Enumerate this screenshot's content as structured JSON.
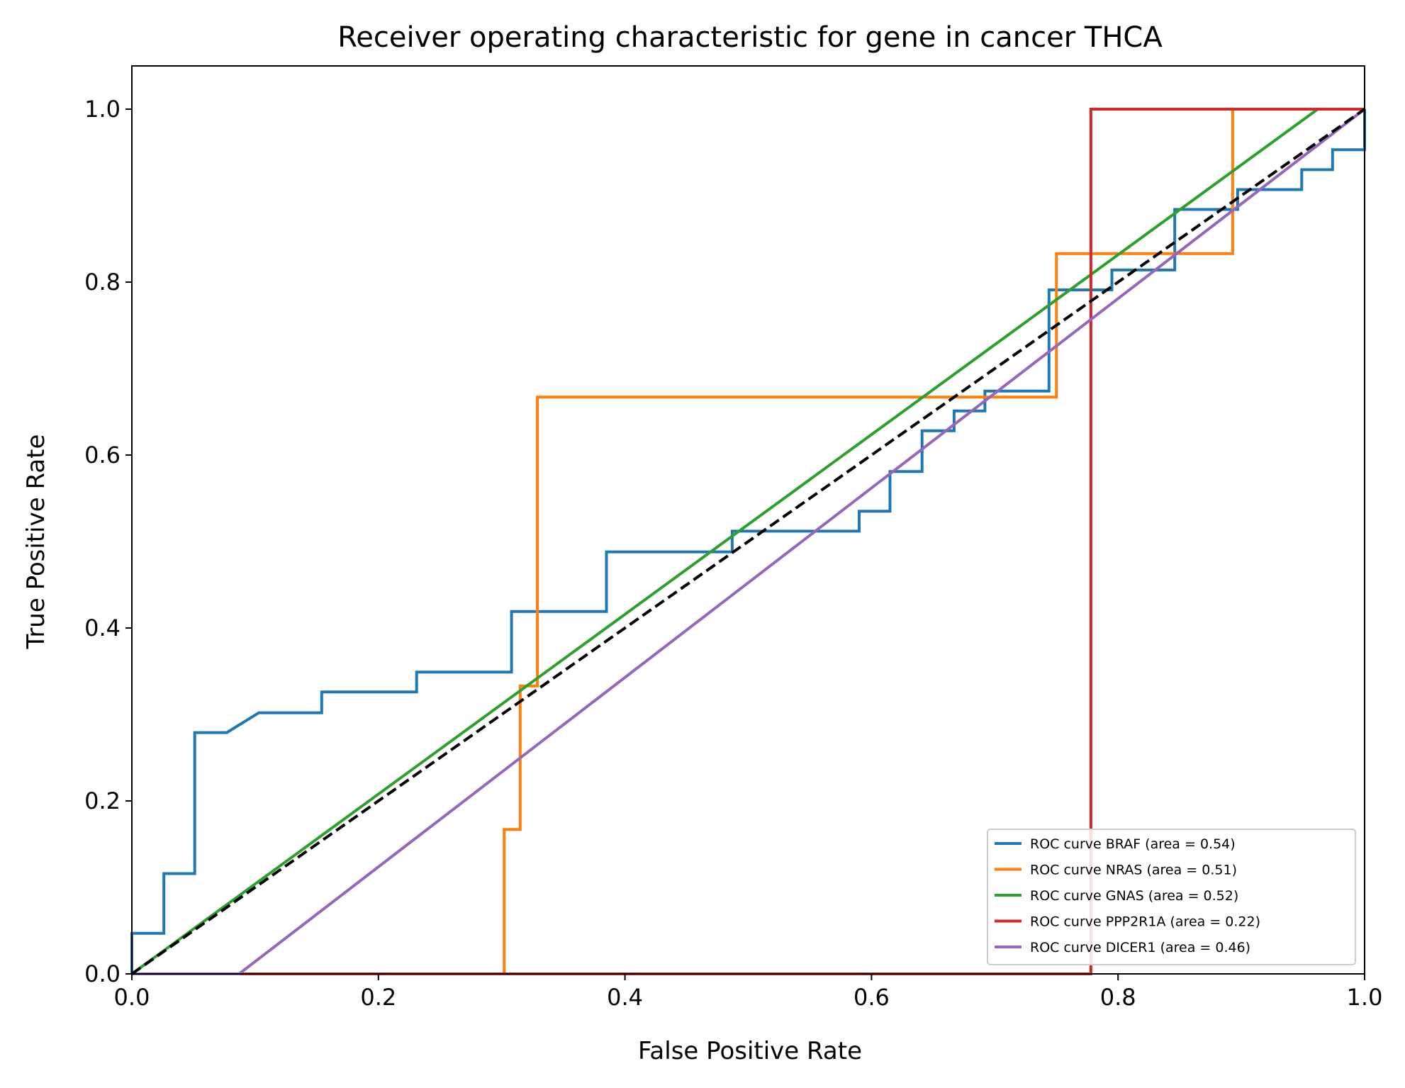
{
  "chart_data": {
    "type": "line",
    "title": "Receiver operating characteristic for gene in cancer THCA",
    "xlabel": "False Positive Rate",
    "ylabel": "True Positive Rate",
    "xlim": [
      0.0,
      1.0
    ],
    "ylim": [
      0.0,
      1.05
    ],
    "x_ticks": [
      "0.0",
      "0.2",
      "0.4",
      "0.6",
      "0.8",
      "1.0"
    ],
    "y_ticks": [
      "0.0",
      "0.2",
      "0.4",
      "0.6",
      "0.8",
      "1.0"
    ],
    "grid": false,
    "legend_position": "bottom-right",
    "series": [
      {
        "name": "ROC curve BRAF (area = 0.54)",
        "color": "#1f77b4",
        "x": [
          0.0,
          0.0,
          0.026,
          0.026,
          0.051,
          0.051,
          0.077,
          0.103,
          0.154,
          0.154,
          0.231,
          0.231,
          0.308,
          0.308,
          0.385,
          0.385,
          0.487,
          0.487,
          0.59,
          0.59,
          0.615,
          0.615,
          0.641,
          0.641,
          0.667,
          0.667,
          0.692,
          0.692,
          0.744,
          0.744,
          0.795,
          0.795,
          0.846,
          0.846,
          0.897,
          0.897,
          0.949,
          0.949,
          0.974,
          0.974,
          1.0,
          1.0
        ],
        "y": [
          0.0,
          0.047,
          0.047,
          0.116,
          0.116,
          0.279,
          0.279,
          0.302,
          0.302,
          0.326,
          0.326,
          0.349,
          0.349,
          0.419,
          0.419,
          0.488,
          0.488,
          0.512,
          0.512,
          0.535,
          0.535,
          0.581,
          0.581,
          0.628,
          0.628,
          0.651,
          0.651,
          0.674,
          0.674,
          0.791,
          0.791,
          0.814,
          0.814,
          0.884,
          0.884,
          0.907,
          0.907,
          0.93,
          0.93,
          0.953,
          0.953,
          1.0
        ]
      },
      {
        "name": "ROC curve NRAS (area = 0.51)",
        "color": "#ff7f0e",
        "x": [
          0.0,
          0.302,
          0.302,
          0.315,
          0.315,
          0.329,
          0.329,
          0.75,
          0.75,
          0.893,
          0.893,
          1.0
        ],
        "y": [
          0.0,
          0.0,
          0.167,
          0.167,
          0.333,
          0.333,
          0.667,
          0.667,
          0.833,
          0.833,
          1.0,
          1.0
        ]
      },
      {
        "name": "ROC curve GNAS (area = 0.52)",
        "color": "#2ca02c",
        "x": [
          0.0,
          0.962,
          1.0
        ],
        "y": [
          0.0,
          1.0,
          1.0
        ]
      },
      {
        "name": "ROC curve PPP2R1A (area = 0.22)",
        "color": "#d62728",
        "x": [
          0.0,
          0.778,
          0.778,
          1.0
        ],
        "y": [
          0.0,
          0.0,
          1.0,
          1.0
        ]
      },
      {
        "name": "ROC curve DICER1 (area = 0.46)",
        "color": "#9467bd",
        "x": [
          0.0,
          0.087,
          1.0
        ],
        "y": [
          0.0,
          0.0,
          1.0
        ]
      }
    ],
    "reference_line": {
      "color": "#000000",
      "style": "dashed",
      "x": [
        0.0,
        1.0
      ],
      "y": [
        0.0,
        1.0
      ]
    }
  }
}
